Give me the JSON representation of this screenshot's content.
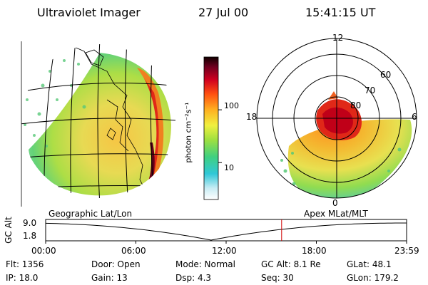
{
  "header": {
    "instrument": "Ultraviolet Imager",
    "date": "27 Jul 00",
    "time": "15:41:15 UT"
  },
  "panels": {
    "left_label": "Geographic Lat/Lon",
    "right_label": "Apex MLat/MLT"
  },
  "colorbar": {
    "unit": "photon cm⁻²s⁻¹",
    "ticks": [
      {
        "value": 100,
        "label": "100"
      },
      {
        "value": 10,
        "label": "10"
      }
    ],
    "range": [
      2,
      1000
    ],
    "scale": "log"
  },
  "polar": {
    "mlt_labels": [
      "12",
      "18",
      "6",
      "0"
    ],
    "lat_labels": [
      "60",
      "70",
      "80"
    ]
  },
  "altitude_plot": {
    "ylabel": "GC Alt",
    "ytick_top": "9.0",
    "ytick_bottom": "1.8",
    "xticks": [
      "00:00",
      "06:00",
      "12:00",
      "18:00",
      "23:59"
    ],
    "current_time_hours": 15.69
  },
  "info": {
    "flt": "Flt: 1356",
    "ip": "IP: 18.0",
    "door": "Door: Open",
    "gain": "Gain: 13",
    "mode": "Mode: Normal",
    "dsp": "Dsp:    4.3",
    "gcalt": "GC Alt: 8.1 Re",
    "seq": "Seq: 30",
    "glat": "GLat:  48.1",
    "glon": "GLon: 179.2"
  },
  "colors": {
    "time_marker": "#d00000"
  }
}
